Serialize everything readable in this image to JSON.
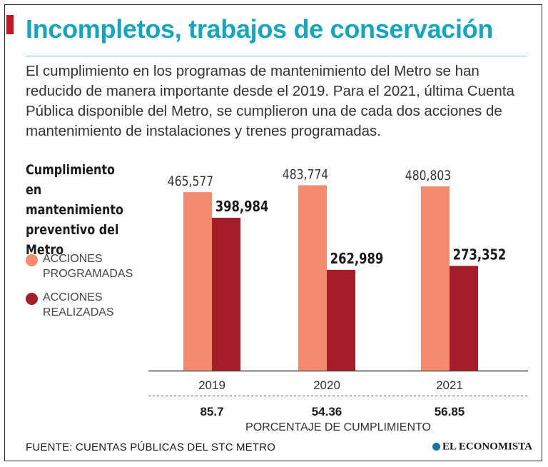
{
  "headline": "Incompletos, trabajos de conservación",
  "intro": "El cumplimiento en los programas de mantenimiento del Metro se han reducido de manera importante desde el 2019. Para el 2021, última Cuenta Pública disponible del Metro, se cumplieron una de cada dos acciones de mantenimiento de instalaciones y trenes programadas.",
  "legend": {
    "programadas": "ACCIONES PROGRAMADAS",
    "realizadas": "ACCIONES REALIZADAS"
  },
  "colors": {
    "accent": "#13a6be",
    "programadas": "#f58b6c",
    "realizadas": "#a51d29",
    "brand_mark": "#c8141e"
  },
  "footer": {
    "source": "FUENTE: CUENTAS PÚBLICAS DEL STC METRO",
    "brand": "EL ECONOMISTA"
  },
  "chart_data": {
    "type": "bar",
    "title": "Cumplimiento en mantenimiento preventivo del Metro",
    "categories": [
      "2019",
      "2020",
      "2021"
    ],
    "series": [
      {
        "name": "ACCIONES PROGRAMADAS",
        "values": [
          465577,
          483774,
          480803
        ],
        "labels": [
          "465,577",
          "483,774",
          "480,803"
        ]
      },
      {
        "name": "ACCIONES REALIZADAS",
        "values": [
          398984,
          262989,
          273352
        ],
        "labels": [
          "398,984",
          "262,989",
          "273,352"
        ]
      }
    ],
    "ylim": [
      0,
      520000
    ],
    "compliance": {
      "label": "PORCENTAJE DE CUMPLIMIENTO",
      "values": [
        "85.7",
        "54.36",
        "56.85"
      ]
    },
    "legend_position": "left",
    "xlabel": "",
    "ylabel": ""
  }
}
